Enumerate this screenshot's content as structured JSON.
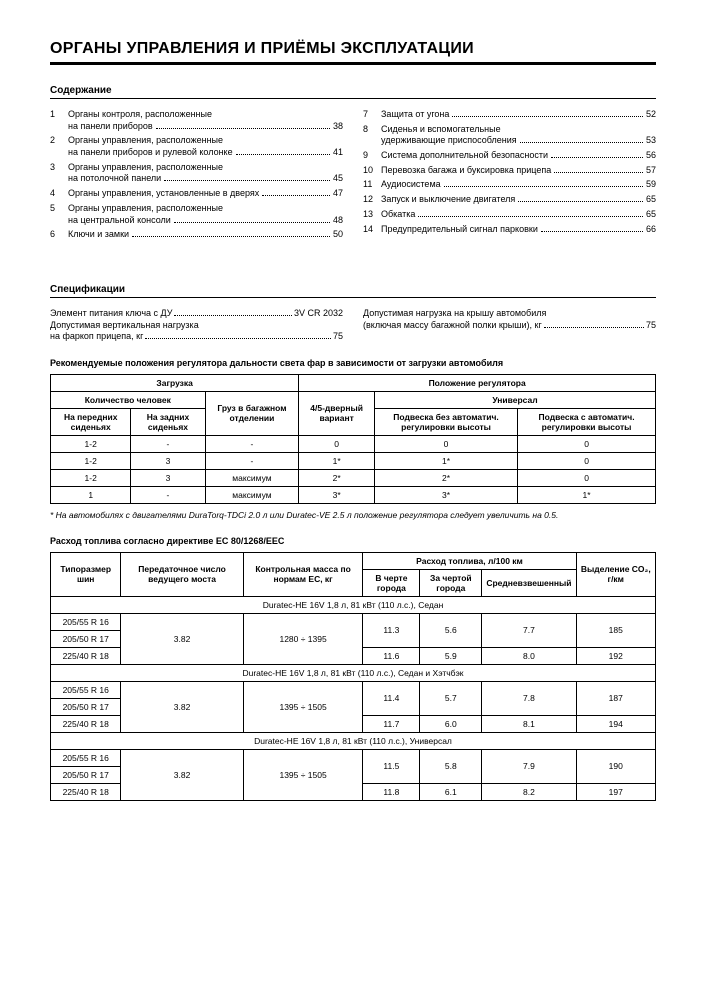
{
  "title": "ОРГАНЫ УПРАВЛЕНИЯ И ПРИЁМЫ ЭКСПЛУАТАЦИИ",
  "contents_hdr": "Содержание",
  "toc_left": [
    {
      "n": "1",
      "lines": [
        "Органы контроля, расположенные",
        "на панели приборов"
      ],
      "p": "38"
    },
    {
      "n": "2",
      "lines": [
        "Органы управления, расположенные",
        "на панели приборов и рулевой колонке"
      ],
      "p": "41"
    },
    {
      "n": "3",
      "lines": [
        "Органы управления, расположенные",
        "на потолочной панели"
      ],
      "p": "45"
    },
    {
      "n": "4",
      "lines": [
        "Органы управления, установленные в дверях"
      ],
      "p": "47"
    },
    {
      "n": "5",
      "lines": [
        "Органы управления, расположенные",
        "на центральной консоли"
      ],
      "p": "48"
    },
    {
      "n": "6",
      "lines": [
        "Ключи и замки"
      ],
      "p": "50"
    }
  ],
  "toc_right": [
    {
      "n": "7",
      "lines": [
        "Защита от угона"
      ],
      "p": "52"
    },
    {
      "n": "8",
      "lines": [
        "Сиденья и вспомогательные",
        "удерживающие приспособления"
      ],
      "p": "53"
    },
    {
      "n": "9",
      "lines": [
        "Система дополнительной безопасности"
      ],
      "p": "56"
    },
    {
      "n": "10",
      "lines": [
        "Перевозка багажа и буксировка прицепа"
      ],
      "p": "57"
    },
    {
      "n": "11",
      "lines": [
        "Аудиосистема"
      ],
      "p": "59"
    },
    {
      "n": "12",
      "lines": [
        "Запуск и выключение двигателя"
      ],
      "p": "65"
    },
    {
      "n": "13",
      "lines": [
        "Обкатка"
      ],
      "p": "65"
    },
    {
      "n": "14",
      "lines": [
        "Предупредительный сигнал парковки"
      ],
      "p": "66"
    }
  ],
  "spec_hdr": "Спецификации",
  "specs_left": [
    {
      "label": "Элемент питания ключа с ДУ",
      "val": "3V CR 2032"
    },
    {
      "label": "Допустимая вертикальная нагрузка",
      "cont": true
    },
    {
      "label": "на фаркоп прицепа, кг",
      "val": "75"
    }
  ],
  "specs_right": [
    {
      "label": "Допустимая нагрузка на крышу автомобиля",
      "cont": true
    },
    {
      "label": "(включая массу багажной полки крыши), кг",
      "val": "75"
    }
  ],
  "headlight_hdr": "Рекомендуемые положения регулятора дальности света фар в зависимости от загрузки автомобиля",
  "hl": {
    "h_load": "Загрузка",
    "h_reg": "Положение регулятора",
    "h_people": "Количество человек",
    "h_cargo": "Груз в багажном отделении",
    "h_45": "4/5-дверный вариант",
    "h_univ": "Универсал",
    "h_front": "На передних сиденьях",
    "h_rear": "На задних сиденьях",
    "h_noauto": "Подвеска без автоматич. регулировки высоты",
    "h_auto": "Подвеска с автоматич. регулировки высоты",
    "rows": [
      [
        "1-2",
        "-",
        "-",
        "0",
        "0",
        "0"
      ],
      [
        "1-2",
        "3",
        "-",
        "1*",
        "1*",
        "0"
      ],
      [
        "1-2",
        "3",
        "максимум",
        "2*",
        "2*",
        "0"
      ],
      [
        "1",
        "-",
        "максимум",
        "3*",
        "3*",
        "1*"
      ]
    ]
  },
  "hl_note": "* На автомобилях с двигателями DuraTorq-TDCi 2.0 л или Duratec-VE 2.5 л положение регулятора следует увеличить на 0.5.",
  "fuel_hdr": "Расход топлива согласно директиве ЕС 80/1268/ЕЕС",
  "fuel": {
    "h_tire": "Типоразмер шин",
    "h_ratio": "Передаточное число ведущего моста",
    "h_mass": "Контрольная масса по нормам ЕС, кг",
    "h_cons": "Расход топлива, л/100 км",
    "h_city": "В черте города",
    "h_out": "За чертой города",
    "h_avg": "Средневзвешенный",
    "h_co2": "Выделение CO₂, г/км",
    "sections": [
      {
        "title": "Duratec-HE 16V 1,8 л, 81 кВт (110 л.с.), Седан",
        "ratio": "3.82",
        "mass": "1280 ÷ 1395",
        "tires": [
          "205/55 R 16",
          "205/50 R 17",
          "225/40 R 18"
        ],
        "rows": [
          [
            "11.3",
            "5.6",
            "7.7",
            "185"
          ],
          [
            "11.6",
            "5.9",
            "8.0",
            "192"
          ]
        ]
      },
      {
        "title": "Duratec-HE 16V 1,8 л, 81 кВт (110 л.с.), Седан и Хэтчбэк",
        "ratio": "3.82",
        "mass": "1395 ÷ 1505",
        "tires": [
          "205/55 R 16",
          "205/50 R 17",
          "225/40 R 18"
        ],
        "rows": [
          [
            "11.4",
            "5.7",
            "7.8",
            "187"
          ],
          [
            "11.7",
            "6.0",
            "8.1",
            "194"
          ]
        ]
      },
      {
        "title": "Duratec-HE 16V 1,8 л, 81 кВт (110 л.с.), Универсал",
        "ratio": "3.82",
        "mass": "1395 ÷ 1505",
        "tires": [
          "205/55 R 16",
          "205/50 R 17",
          "225/40 R 18"
        ],
        "rows": [
          [
            "11.5",
            "5.8",
            "7.9",
            "190"
          ],
          [
            "11.8",
            "6.1",
            "8.2",
            "197"
          ]
        ]
      }
    ]
  }
}
